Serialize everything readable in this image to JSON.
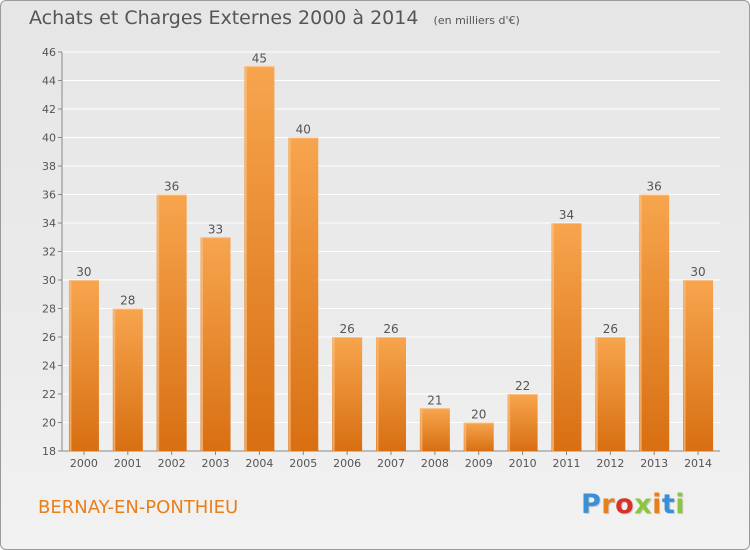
{
  "title": "Achats et Charges Externes 2000 à 2014",
  "unit_label": "(en milliers d'€)",
  "location": "BERNAY-EN-PONTHIEU",
  "logo": {
    "text": "Proxiti",
    "letter_colors": [
      "#3b8fd4",
      "#e8801a",
      "#d9302a",
      "#8cc63f",
      "#e8801a",
      "#3b8fd4",
      "#8cc63f"
    ]
  },
  "colors": {
    "bar_top": "#f7a54e",
    "bar_bottom": "#d86f12",
    "bar_highlight": "#fbc083",
    "grid": "#ffffff",
    "text": "#555555",
    "accent": "#e8801a"
  },
  "chart_data": {
    "type": "bar",
    "title": "Achats et Charges Externes 2000 à 2014",
    "categories": [
      "2000",
      "2001",
      "2002",
      "2003",
      "2004",
      "2005",
      "2006",
      "2007",
      "2008",
      "2009",
      "2010",
      "2011",
      "2012",
      "2013",
      "2014"
    ],
    "values": [
      30,
      28,
      36,
      33,
      45,
      40,
      26,
      26,
      21,
      20,
      22,
      34,
      26,
      36,
      30
    ],
    "ylim": [
      18,
      46
    ],
    "yticks": [
      18,
      20,
      22,
      24,
      26,
      28,
      30,
      32,
      34,
      36,
      38,
      40,
      42,
      44,
      46
    ],
    "grid": true,
    "legend": "none"
  }
}
